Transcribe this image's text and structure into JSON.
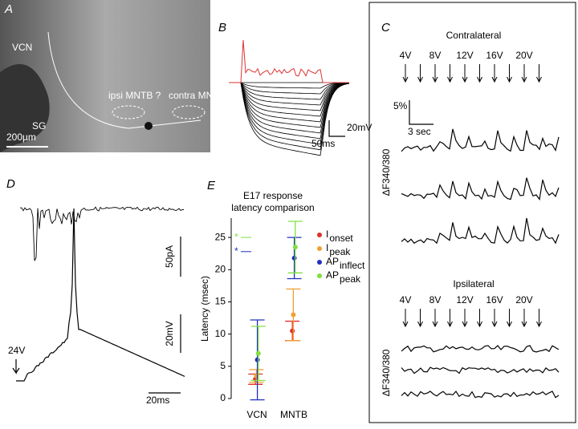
{
  "panel_a": {
    "letter": "A",
    "labels": [
      "VCN",
      "SG",
      "ipsi MNTB ?",
      "contra MNTB"
    ],
    "scale": "200µm"
  },
  "panel_b": {
    "letter": "B",
    "scale_v": "20mV",
    "scale_t": "50ms"
  },
  "panel_c": {
    "letter": "C",
    "contra": {
      "title": "Contralateral",
      "pulses": [
        "4V",
        "8V",
        "12V",
        "16V",
        "20V"
      ],
      "scale_v": "5%",
      "scale_t": "3 sec",
      "ylabel": "ΔF340/380"
    },
    "ipsi": {
      "title": "Ipsilateral",
      "pulses": [
        "4V",
        "8V",
        "12V",
        "16V",
        "20V"
      ],
      "ylabel": "ΔF340/380"
    }
  },
  "panel_d": {
    "letter": "D",
    "scale_i": "50pA",
    "scale_v": "20mV",
    "stim": "24V",
    "scale_t": "20ms"
  },
  "chart_data": {
    "type": "scatter",
    "letter": "E",
    "title_lines": [
      "E17 response",
      "latency comparison"
    ],
    "ylabel": "Latency (msec)",
    "categories": [
      "VCN",
      "MNTB"
    ],
    "ylim": [
      0,
      28
    ],
    "yticks": [
      0,
      5,
      10,
      15,
      20,
      25
    ],
    "series": [
      {
        "name": "I",
        "sub": "onset",
        "color": "#e0302a",
        "values": [
          3.0,
          10.5
        ],
        "errors": [
          0.8,
          1.5
        ]
      },
      {
        "name": "I",
        "sub": "peak",
        "color": "#f0a030",
        "values": [
          3.5,
          13.0
        ],
        "errors": [
          1.0,
          4.0
        ]
      },
      {
        "name": "AP",
        "sub": "inflect",
        "color": "#2030c0",
        "values": [
          6.0,
          21.8
        ],
        "errors": [
          6.2,
          3.2
        ]
      },
      {
        "name": "AP",
        "sub": "peak",
        "color": "#80e040",
        "values": [
          7.0,
          23.5
        ],
        "errors": [
          4.2,
          4.0
        ]
      }
    ],
    "annotations": [
      {
        "text": "*",
        "y": 25,
        "color": "#80e040"
      },
      {
        "text": "*",
        "y": 22.8,
        "color": "#2030c0"
      }
    ]
  }
}
